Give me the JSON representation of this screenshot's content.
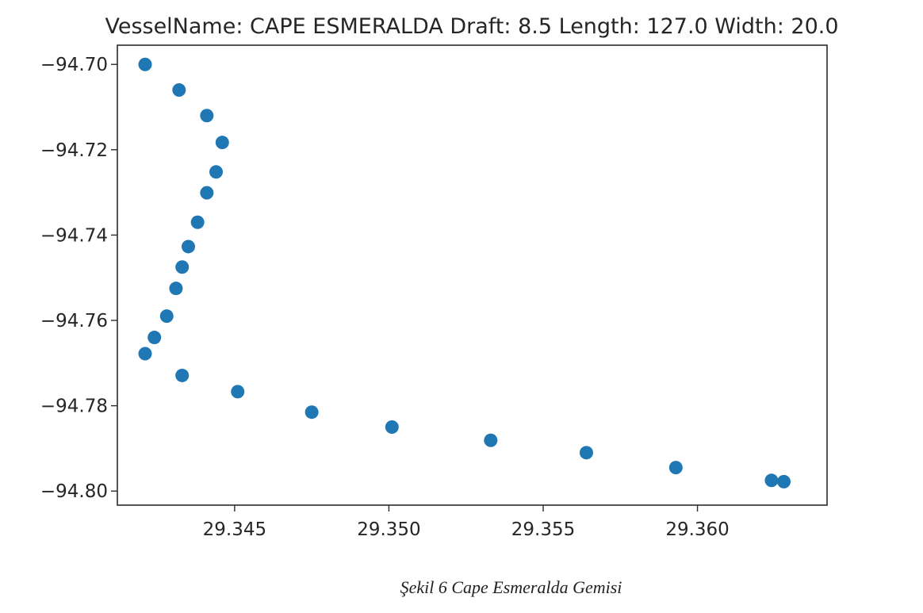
{
  "caption": "Şekil 6  Cape Esmeralda Gemisi",
  "chart_data": {
    "type": "scatter",
    "title": "VesselName: CAPE ESMERALDA Draft: 8.5 Length: 127.0 Width: 20.0",
    "xlabel": "",
    "ylabel": "",
    "xlim": [
      29.3412,
      29.3642
    ],
    "ylim": [
      -94.8033,
      -94.6955
    ],
    "xticks": [
      29.345,
      29.35,
      29.355,
      29.36
    ],
    "xtick_labels": [
      "29.345",
      "29.350",
      "29.355",
      "29.360"
    ],
    "yticks": [
      -94.7,
      -94.72,
      -94.74,
      -94.76,
      -94.78,
      -94.8
    ],
    "ytick_labels": [
      "−94.70",
      "−94.72",
      "−94.74",
      "−94.76",
      "−94.78",
      "−94.80"
    ],
    "grid": false,
    "color": "#1f77b4",
    "points": [
      {
        "x": 29.3421,
        "y": -94.7
      },
      {
        "x": 29.3432,
        "y": -94.706
      },
      {
        "x": 29.3441,
        "y": -94.712
      },
      {
        "x": 29.3446,
        "y": -94.7183
      },
      {
        "x": 29.3444,
        "y": -94.7252
      },
      {
        "x": 29.3441,
        "y": -94.7301
      },
      {
        "x": 29.3438,
        "y": -94.737
      },
      {
        "x": 29.3435,
        "y": -94.7427
      },
      {
        "x": 29.3433,
        "y": -94.7475
      },
      {
        "x": 29.3431,
        "y": -94.7525
      },
      {
        "x": 29.3428,
        "y": -94.759
      },
      {
        "x": 29.3424,
        "y": -94.764
      },
      {
        "x": 29.3421,
        "y": -94.7678
      },
      {
        "x": 29.3433,
        "y": -94.7729
      },
      {
        "x": 29.3451,
        "y": -94.7767
      },
      {
        "x": 29.3475,
        "y": -94.7815
      },
      {
        "x": 29.3501,
        "y": -94.785
      },
      {
        "x": 29.3533,
        "y": -94.7881
      },
      {
        "x": 29.3564,
        "y": -94.791
      },
      {
        "x": 29.3593,
        "y": -94.7945
      },
      {
        "x": 29.3624,
        "y": -94.7975
      },
      {
        "x": 29.3628,
        "y": -94.7978
      }
    ]
  }
}
